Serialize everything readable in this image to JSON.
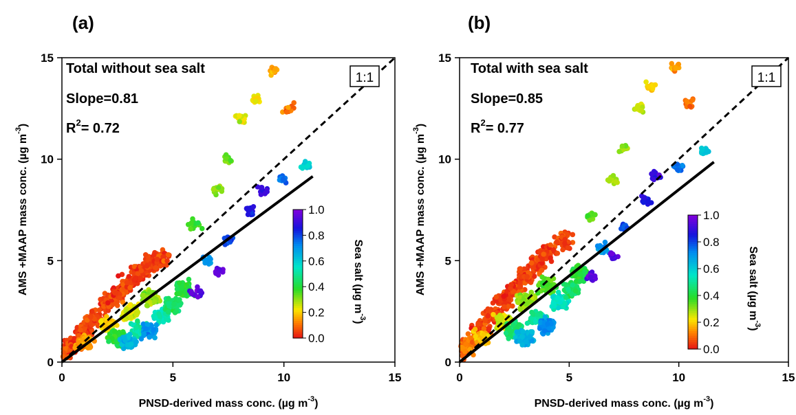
{
  "chart_data": [
    {
      "type": "scatter",
      "panel_label": "(a)",
      "annotation": "Total without sea salt",
      "slope_text": "Slope=0.81",
      "r2_prefix": "R",
      "r2_sup": "2",
      "r2_value": "= 0.72",
      "one_to_one_label": "1:1",
      "xlabel_main": "PNSD-derived mass conc. (µg m",
      "xlabel_sup": "-3",
      "xlabel_end": ")",
      "ylabel_main": "AMS +MAAP mass conc. (µg m",
      "ylabel_sup": "-3",
      "ylabel_end": ")",
      "xlim": [
        0,
        15
      ],
      "ylim": [
        0,
        15
      ],
      "xticks": [
        "0",
        "5",
        "10",
        "15"
      ],
      "yticks": [
        "0",
        "5",
        "10",
        "15"
      ],
      "fit_slope": 0.81,
      "fit_range": [
        0,
        11.3
      ],
      "colorbar": {
        "label_main": "Sea salt (µg m",
        "label_sup": "-3",
        "label_end": ")",
        "ticks": [
          "0.0",
          "0.2",
          "0.4",
          "0.6",
          "0.8",
          "1.0"
        ],
        "range": [
          0,
          1
        ]
      },
      "clusters": [
        {
          "x": 0.1,
          "y": 0.5,
          "c": 0.05
        },
        {
          "x": 0.5,
          "y": 0.8,
          "c": 0.05
        },
        {
          "x": 1.0,
          "y": 1.6,
          "c": 0.05
        },
        {
          "x": 1.5,
          "y": 2.2,
          "c": 0.05
        },
        {
          "x": 2.0,
          "y": 2.9,
          "c": 0.05
        },
        {
          "x": 2.5,
          "y": 3.4,
          "c": 0.05
        },
        {
          "x": 3.0,
          "y": 3.9,
          "c": 0.05
        },
        {
          "x": 3.5,
          "y": 4.4,
          "c": 0.05
        },
        {
          "x": 4.0,
          "y": 4.9,
          "c": 0.05
        },
        {
          "x": 4.5,
          "y": 5.1,
          "c": 0.05
        },
        {
          "x": 1.0,
          "y": 1.0,
          "c": 0.15
        },
        {
          "x": 2.0,
          "y": 1.8,
          "c": 0.2
        },
        {
          "x": 3.0,
          "y": 2.5,
          "c": 0.25
        },
        {
          "x": 4.0,
          "y": 3.2,
          "c": 0.3
        },
        {
          "x": 2.5,
          "y": 1.2,
          "c": 0.4
        },
        {
          "x": 3.5,
          "y": 1.6,
          "c": 0.5
        },
        {
          "x": 4.5,
          "y": 2.3,
          "c": 0.55
        },
        {
          "x": 5.0,
          "y": 2.8,
          "c": 0.45
        },
        {
          "x": 5.5,
          "y": 3.6,
          "c": 0.4
        },
        {
          "x": 3.0,
          "y": 1.0,
          "c": 0.65
        },
        {
          "x": 4.0,
          "y": 1.5,
          "c": 0.7
        },
        {
          "x": 6.0,
          "y": 6.8,
          "c": 0.35
        },
        {
          "x": 7.0,
          "y": 8.5,
          "c": 0.3
        },
        {
          "x": 7.5,
          "y": 10.0,
          "c": 0.32
        },
        {
          "x": 8.0,
          "y": 12.0,
          "c": 0.25
        },
        {
          "x": 8.7,
          "y": 13.0,
          "c": 0.2
        },
        {
          "x": 9.5,
          "y": 14.4,
          "c": 0.15
        },
        {
          "x": 10.2,
          "y": 12.5,
          "c": 0.1
        },
        {
          "x": 6.5,
          "y": 5.0,
          "c": 0.7
        },
        {
          "x": 7.5,
          "y": 6.0,
          "c": 0.8
        },
        {
          "x": 8.5,
          "y": 7.5,
          "c": 0.85
        },
        {
          "x": 9.0,
          "y": 8.5,
          "c": 0.9
        },
        {
          "x": 10.0,
          "y": 9.0,
          "c": 0.75
        },
        {
          "x": 11.0,
          "y": 9.7,
          "c": 0.6
        },
        {
          "x": 6.0,
          "y": 3.4,
          "c": 0.95
        },
        {
          "x": 7.0,
          "y": 4.4,
          "c": 0.95
        }
      ]
    },
    {
      "type": "scatter",
      "panel_label": "(b)",
      "annotation": "Total with sea salt",
      "slope_text": "Slope=0.85",
      "r2_prefix": "R",
      "r2_sup": "2",
      "r2_value": "= 0.77",
      "one_to_one_label": "1:1",
      "xlabel_main": "PNSD-derived mass conc. (µg m",
      "xlabel_sup": "-3",
      "xlabel_end": ")",
      "ylabel_main": "AMS +MAAP mass conc. (µg m",
      "ylabel_sup": "-3",
      "ylabel_end": ")",
      "xlim": [
        0,
        15
      ],
      "ylim": [
        0,
        15
      ],
      "xticks": [
        "0",
        "5",
        "10",
        "15"
      ],
      "yticks": [
        "0",
        "5",
        "10",
        "15"
      ],
      "fit_slope": 0.85,
      "fit_range": [
        0,
        11.6
      ],
      "colorbar": {
        "label_main": "Sea salt (µg m",
        "label_sup": "-3",
        "label_end": ")",
        "ticks": [
          "0.0",
          "0.2",
          "0.4",
          "0.6",
          "0.8",
          "1.0"
        ],
        "range": [
          0,
          1
        ]
      },
      "clusters": [
        {
          "x": 0.2,
          "y": 0.6,
          "c": 0.1
        },
        {
          "x": 0.6,
          "y": 1.0,
          "c": 0.1
        },
        {
          "x": 1.0,
          "y": 1.7,
          "c": 0.05
        },
        {
          "x": 1.5,
          "y": 2.3,
          "c": 0.05
        },
        {
          "x": 2.0,
          "y": 3.0,
          "c": 0.05
        },
        {
          "x": 2.5,
          "y": 3.6,
          "c": 0.05
        },
        {
          "x": 3.0,
          "y": 4.2,
          "c": 0.05
        },
        {
          "x": 3.5,
          "y": 4.8,
          "c": 0.05
        },
        {
          "x": 4.0,
          "y": 5.4,
          "c": 0.05
        },
        {
          "x": 4.8,
          "y": 6.0,
          "c": 0.05
        },
        {
          "x": 1.0,
          "y": 1.2,
          "c": 0.2
        },
        {
          "x": 2.0,
          "y": 2.0,
          "c": 0.25
        },
        {
          "x": 3.0,
          "y": 3.0,
          "c": 0.3
        },
        {
          "x": 4.0,
          "y": 3.8,
          "c": 0.35
        },
        {
          "x": 2.5,
          "y": 1.6,
          "c": 0.45
        },
        {
          "x": 3.5,
          "y": 2.2,
          "c": 0.5
        },
        {
          "x": 4.5,
          "y": 3.0,
          "c": 0.55
        },
        {
          "x": 5.0,
          "y": 3.6,
          "c": 0.45
        },
        {
          "x": 5.5,
          "y": 4.4,
          "c": 0.4
        },
        {
          "x": 3.0,
          "y": 1.2,
          "c": 0.65
        },
        {
          "x": 4.0,
          "y": 1.8,
          "c": 0.7
        },
        {
          "x": 6.0,
          "y": 7.2,
          "c": 0.35
        },
        {
          "x": 7.0,
          "y": 9.0,
          "c": 0.3
        },
        {
          "x": 7.5,
          "y": 10.5,
          "c": 0.32
        },
        {
          "x": 8.2,
          "y": 12.5,
          "c": 0.25
        },
        {
          "x": 8.7,
          "y": 13.6,
          "c": 0.2
        },
        {
          "x": 9.8,
          "y": 14.5,
          "c": 0.15
        },
        {
          "x": 10.5,
          "y": 12.8,
          "c": 0.1
        },
        {
          "x": 6.5,
          "y": 5.6,
          "c": 0.7
        },
        {
          "x": 7.5,
          "y": 6.6,
          "c": 0.8
        },
        {
          "x": 8.5,
          "y": 8.0,
          "c": 0.85
        },
        {
          "x": 9.0,
          "y": 9.2,
          "c": 0.9
        },
        {
          "x": 10.0,
          "y": 9.6,
          "c": 0.75
        },
        {
          "x": 11.2,
          "y": 10.4,
          "c": 0.6
        },
        {
          "x": 6.0,
          "y": 4.2,
          "c": 0.95
        },
        {
          "x": 7.0,
          "y": 5.2,
          "c": 0.95
        }
      ]
    }
  ]
}
